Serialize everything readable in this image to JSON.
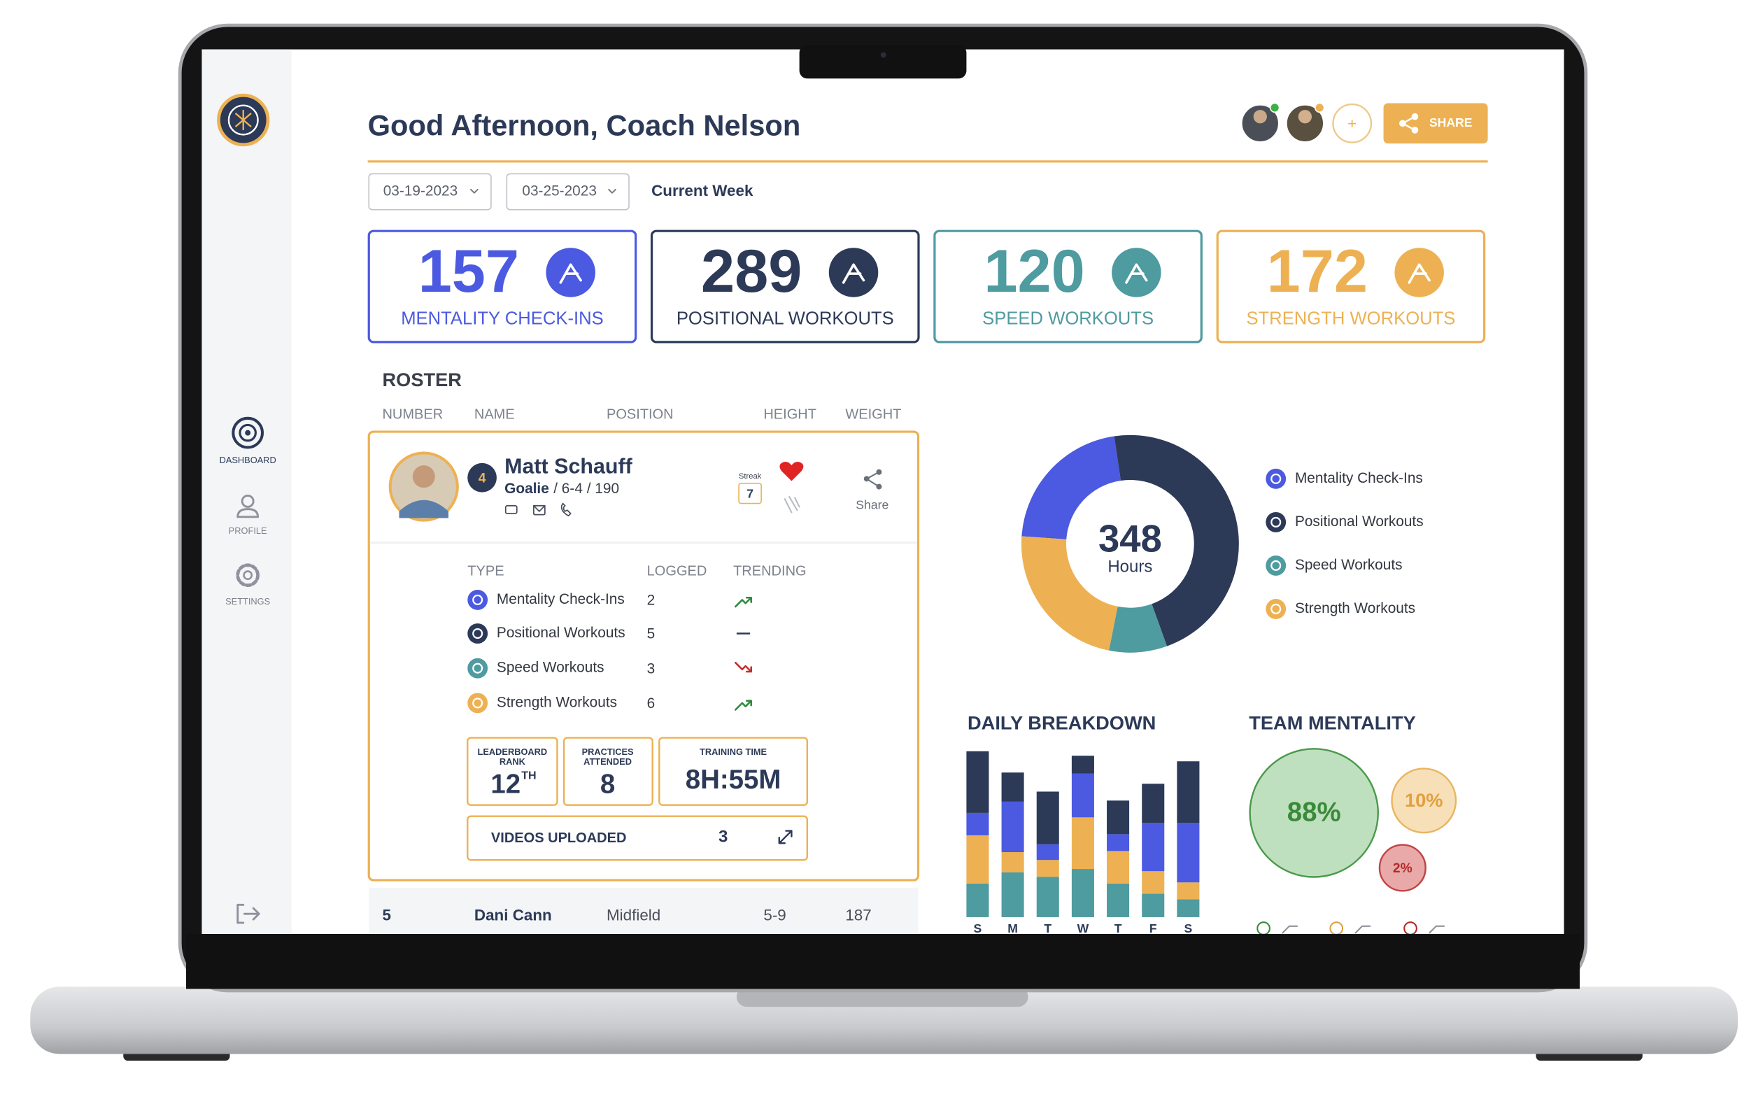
{
  "sidebar": {
    "nav": [
      "DASHBOARD",
      "PROFILE",
      "SETTINGS"
    ]
  },
  "header": {
    "title": "Good Afternoon, Coach Nelson",
    "add": "+",
    "share": "SHARE"
  },
  "filters": {
    "start": "03-19-2023",
    "end": "03-25-2023",
    "range": "Current Week"
  },
  "stats": [
    {
      "value": 157,
      "label": "MENTALITY CHECK-INS",
      "color": "#4b5ae0"
    },
    {
      "value": 289,
      "label": "POSITIONAL WORKOUTS",
      "color": "#2c3a58"
    },
    {
      "value": 120,
      "label": "SPEED WORKOUTS",
      "color": "#4e9ba0"
    },
    {
      "value": 172,
      "label": "STRENGTH WORKOUTS",
      "color": "#edb153"
    }
  ],
  "roster": {
    "title": "ROSTER",
    "columns": [
      "NUMBER",
      "NAME",
      "POSITION",
      "HEIGHT",
      "WEIGHT"
    ],
    "expanded": {
      "number": 4,
      "name": "Matt Schauff",
      "position": "Goalie",
      "details": "/ 6-4 / 190",
      "streak_label": "Streak",
      "streak": 7,
      "share": "Share",
      "types_header": [
        "TYPE",
        "LOGGED",
        "TRENDING"
      ],
      "types": [
        {
          "name": "Mentality Check-Ins",
          "logged": 2
        },
        {
          "name": "Positional Workouts",
          "logged": 5
        },
        {
          "name": "Speed Workouts",
          "logged": 3
        },
        {
          "name": "Strength Workouts",
          "logged": 6
        }
      ],
      "rank_label": [
        "LEADERBOARD",
        "RANK"
      ],
      "rank": 12,
      "rank_suffix": "TH",
      "practices_label": [
        "PRACTICES",
        "ATTENDED"
      ],
      "practices": 8,
      "training_label": "TRAINING TIME",
      "training": "8H:55M",
      "videos_label": "VIDEOS UPLOADED",
      "videos": 3
    },
    "rows": [
      [
        "5",
        "Dani Cann",
        "Midfield",
        "5-9",
        "187"
      ]
    ]
  },
  "chart_data": [
    {
      "type": "pie",
      "donut": true,
      "center_value": 348,
      "center_label": "Hours",
      "categories": [
        "Mentality Check-Ins",
        "Positional Workouts",
        "Speed Workouts",
        "Strength Workouts"
      ],
      "values": [
        75,
        163,
        30,
        80
      ],
      "colors": [
        "#4b5ae0",
        "#2c3a58",
        "#4e9ba0",
        "#edb153"
      ]
    },
    {
      "type": "bar",
      "stacked": true,
      "title": "DAILY BREAKDOWN",
      "categories": [
        "S",
        "M",
        "T",
        "W",
        "T",
        "F",
        "S"
      ],
      "series": [
        {
          "color": "#4e9ba0",
          "values": [
            30,
            40,
            36,
            43,
            30,
            21,
            16
          ]
        },
        {
          "color": "#edb153",
          "values": [
            43,
            18,
            15,
            46,
            29,
            20,
            15
          ]
        },
        {
          "color": "#4b5ae0",
          "values": [
            20,
            45,
            14,
            39,
            15,
            43,
            53
          ]
        },
        {
          "color": "#2c3a58",
          "values": [
            55,
            26,
            47,
            16,
            30,
            35,
            55
          ]
        }
      ]
    },
    {
      "type": "bubble",
      "title": "TEAM MENTALITY",
      "values": [
        88,
        10,
        2
      ],
      "value_labels": [
        "88%",
        "10%",
        "2%"
      ],
      "colors": [
        "#bfe0bf",
        "#f7e0b8",
        "#eaa9a9"
      ],
      "stroke_colors": [
        "#4a9a4a",
        "#e9b560",
        "#c04444"
      ],
      "text_colors": [
        "#3a8a3a",
        "#e0a040",
        "#b02a2a"
      ]
    }
  ]
}
